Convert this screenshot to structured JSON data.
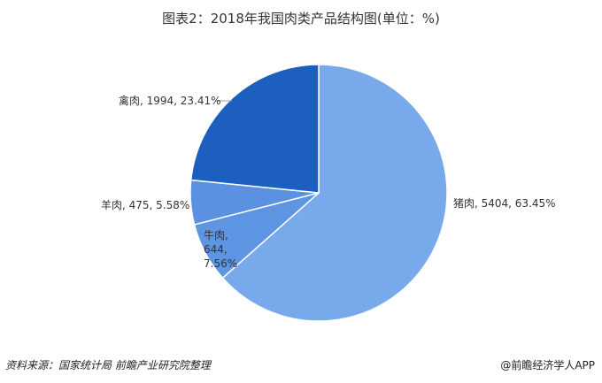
{
  "chart_data": {
    "type": "pie",
    "title": "图表2：2018年我国肉类产品结构图(单位：%)",
    "values": [
      5404,
      644,
      475,
      1994
    ],
    "value_labels": [
      "猪肉, 5404, 63.45%",
      "牛肉, 644, 7.56%",
      "羊肉, 475, 5.58%",
      "禽肉, 1994, 23.41%"
    ],
    "colors": [
      "#78a9eb",
      "#5d95e3",
      "#5a92e1",
      "#1c5fbe"
    ],
    "source": "资料来源：国家统计局 前瞻产业研究院整理",
    "credit": "@前瞻经济学人APP"
  }
}
